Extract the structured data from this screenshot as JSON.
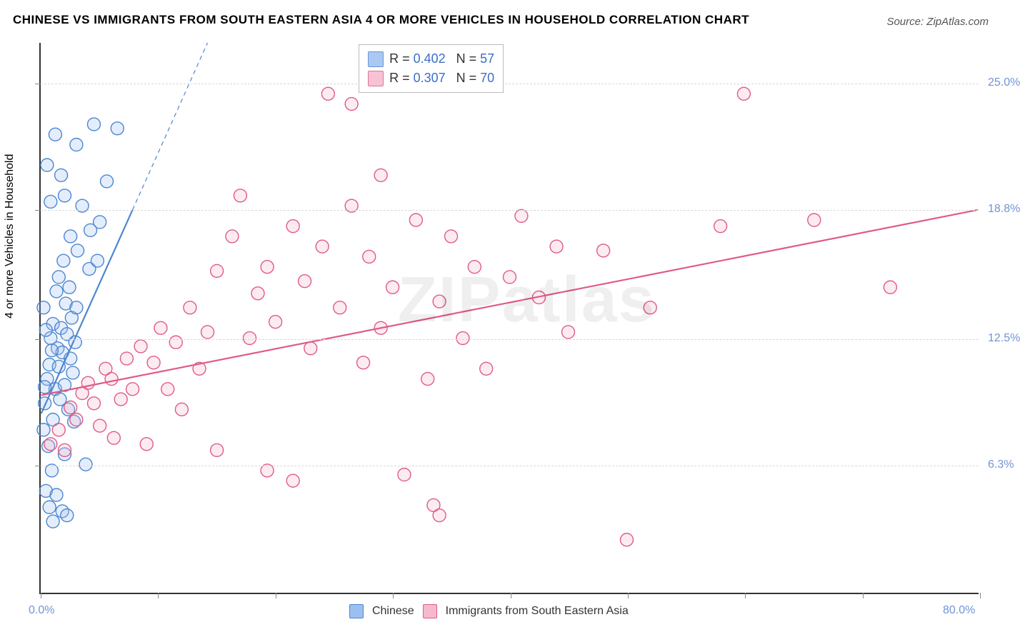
{
  "title": "CHINESE VS IMMIGRANTS FROM SOUTH EASTERN ASIA 4 OR MORE VEHICLES IN HOUSEHOLD CORRELATION CHART",
  "source": "Source: ZipAtlas.com",
  "ylabel": "4 or more Vehicles in Household",
  "watermark": "ZIPatlas",
  "title_fontsize": 17,
  "source_fontsize": 15,
  "chart": {
    "type": "scatter",
    "background_color": "#ffffff",
    "grid_color": "#d8d8d8",
    "grid_dash": "4,4",
    "axis_color": "#333333",
    "axis_label_color": "#6f95d6",
    "xlim": [
      0,
      80
    ],
    "ylim": [
      0,
      27
    ],
    "x_tick_positions": [
      0,
      10,
      20,
      30,
      40,
      50,
      60,
      70,
      80
    ],
    "y_tick_lines": [
      6.3,
      12.5,
      18.8,
      25.0
    ],
    "y_tick_labels": [
      "6.3%",
      "12.5%",
      "18.8%",
      "25.0%"
    ],
    "x_min_label": "0.0%",
    "x_max_label": "80.0%",
    "marker_radius": 9,
    "marker_stroke_width": 1.4,
    "marker_fill_opacity": 0.28,
    "line_width_solid": 2.2,
    "line_width_dashed": 1.2,
    "line_dash_pattern": "6,5"
  },
  "series": [
    {
      "name": "Chinese",
      "color_stroke": "#4c86d0",
      "color_fill": "#9dbff0",
      "R": "0.402",
      "N": "57",
      "trend": {
        "x1": 0,
        "y1": 8.8,
        "x2": 7.8,
        "y2": 18.8,
        "x_dash_end": 14.2,
        "y_dash_end": 27.0
      },
      "points": [
        [
          0.2,
          8.0
        ],
        [
          0.3,
          9.3
        ],
        [
          0.5,
          10.5
        ],
        [
          0.6,
          7.2
        ],
        [
          0.7,
          11.2
        ],
        [
          0.8,
          12.5
        ],
        [
          0.9,
          6.0
        ],
        [
          1.0,
          13.2
        ],
        [
          1.0,
          8.5
        ],
        [
          1.2,
          10.0
        ],
        [
          1.3,
          14.8
        ],
        [
          1.4,
          12.0
        ],
        [
          1.5,
          11.1
        ],
        [
          1.5,
          15.5
        ],
        [
          1.6,
          9.5
        ],
        [
          1.7,
          13.0
        ],
        [
          1.8,
          11.8
        ],
        [
          1.9,
          16.3
        ],
        [
          2.0,
          10.2
        ],
        [
          2.1,
          14.2
        ],
        [
          2.2,
          12.7
        ],
        [
          2.3,
          9.0
        ],
        [
          2.4,
          15.0
        ],
        [
          2.5,
          11.5
        ],
        [
          2.6,
          13.5
        ],
        [
          2.7,
          10.8
        ],
        [
          2.8,
          8.4
        ],
        [
          2.9,
          12.3
        ],
        [
          3.0,
          14.0
        ],
        [
          0.4,
          5.0
        ],
        [
          0.7,
          4.2
        ],
        [
          1.3,
          4.8
        ],
        [
          1.8,
          4.0
        ],
        [
          1.0,
          3.5
        ],
        [
          2.2,
          3.8
        ],
        [
          0.5,
          21.0
        ],
        [
          1.2,
          22.5
        ],
        [
          3.0,
          22.0
        ],
        [
          4.5,
          23.0
        ],
        [
          6.5,
          22.8
        ],
        [
          2.0,
          19.5
        ],
        [
          3.5,
          19.0
        ],
        [
          4.2,
          17.8
        ],
        [
          5.0,
          18.2
        ],
        [
          5.6,
          20.2
        ],
        [
          4.1,
          15.9
        ],
        [
          3.1,
          16.8
        ],
        [
          4.8,
          16.3
        ],
        [
          2.5,
          17.5
        ],
        [
          0.8,
          19.2
        ],
        [
          1.7,
          20.5
        ],
        [
          0.2,
          14.0
        ],
        [
          0.4,
          12.9
        ],
        [
          0.9,
          11.9
        ],
        [
          0.3,
          10.1
        ],
        [
          3.8,
          6.3
        ],
        [
          2.0,
          6.8
        ]
      ]
    },
    {
      "name": "Immigrants from South Eastern Asia",
      "color_stroke": "#e05b84",
      "color_fill": "#f6b8cd",
      "R": "0.307",
      "N": "70",
      "trend": {
        "x1": 0,
        "y1": 9.7,
        "x2": 80,
        "y2": 18.8
      },
      "points": [
        [
          0.8,
          7.3
        ],
        [
          1.5,
          8.0
        ],
        [
          2.0,
          7.0
        ],
        [
          2.5,
          9.1
        ],
        [
          3.0,
          8.5
        ],
        [
          3.5,
          9.8
        ],
        [
          4.0,
          10.3
        ],
        [
          4.5,
          9.3
        ],
        [
          5.0,
          8.2
        ],
        [
          5.5,
          11.0
        ],
        [
          6.0,
          10.5
        ],
        [
          6.2,
          7.6
        ],
        [
          6.8,
          9.5
        ],
        [
          7.3,
          11.5
        ],
        [
          7.8,
          10.0
        ],
        [
          8.5,
          12.1
        ],
        [
          9.0,
          7.3
        ],
        [
          9.6,
          11.3
        ],
        [
          10.2,
          13.0
        ],
        [
          10.8,
          10.0
        ],
        [
          11.5,
          12.3
        ],
        [
          12.0,
          9.0
        ],
        [
          12.7,
          14.0
        ],
        [
          13.5,
          11.0
        ],
        [
          14.2,
          12.8
        ],
        [
          15.0,
          15.8
        ],
        [
          15.0,
          7.0
        ],
        [
          16.3,
          17.5
        ],
        [
          17.0,
          19.5
        ],
        [
          17.8,
          12.5
        ],
        [
          18.5,
          14.7
        ],
        [
          19.3,
          6.0
        ],
        [
          19.3,
          16.0
        ],
        [
          20.0,
          13.3
        ],
        [
          21.5,
          18.0
        ],
        [
          21.5,
          5.5
        ],
        [
          22.5,
          15.3
        ],
        [
          23.0,
          12.0
        ],
        [
          24.0,
          17.0
        ],
        [
          24.5,
          24.5
        ],
        [
          25.5,
          14.0
        ],
        [
          26.5,
          19.0
        ],
        [
          26.5,
          24.0
        ],
        [
          27.5,
          11.3
        ],
        [
          28.0,
          16.5
        ],
        [
          29.0,
          13.0
        ],
        [
          29.0,
          20.5
        ],
        [
          30.0,
          15.0
        ],
        [
          31.0,
          5.8
        ],
        [
          32.0,
          18.3
        ],
        [
          33.0,
          10.5
        ],
        [
          33.5,
          4.3
        ],
        [
          34.0,
          14.3
        ],
        [
          35.0,
          17.5
        ],
        [
          36.0,
          12.5
        ],
        [
          34.0,
          3.8
        ],
        [
          37.0,
          16.0
        ],
        [
          38.0,
          11.0
        ],
        [
          40.0,
          15.5
        ],
        [
          41.0,
          18.5
        ],
        [
          42.5,
          14.5
        ],
        [
          44.0,
          17.0
        ],
        [
          45.0,
          12.8
        ],
        [
          48.0,
          16.8
        ],
        [
          50.0,
          2.6
        ],
        [
          52.0,
          14.0
        ],
        [
          58.0,
          18.0
        ],
        [
          60.0,
          24.5
        ],
        [
          66.0,
          18.3
        ],
        [
          72.5,
          15.0
        ]
      ]
    }
  ],
  "legend_top": {
    "R_label": "R =",
    "N_label": "N =",
    "text_color": "#333333",
    "value_color": "#3b6fc7"
  },
  "legend_bottom": {
    "items": [
      "Chinese",
      "Immigrants from South Eastern Asia"
    ]
  }
}
